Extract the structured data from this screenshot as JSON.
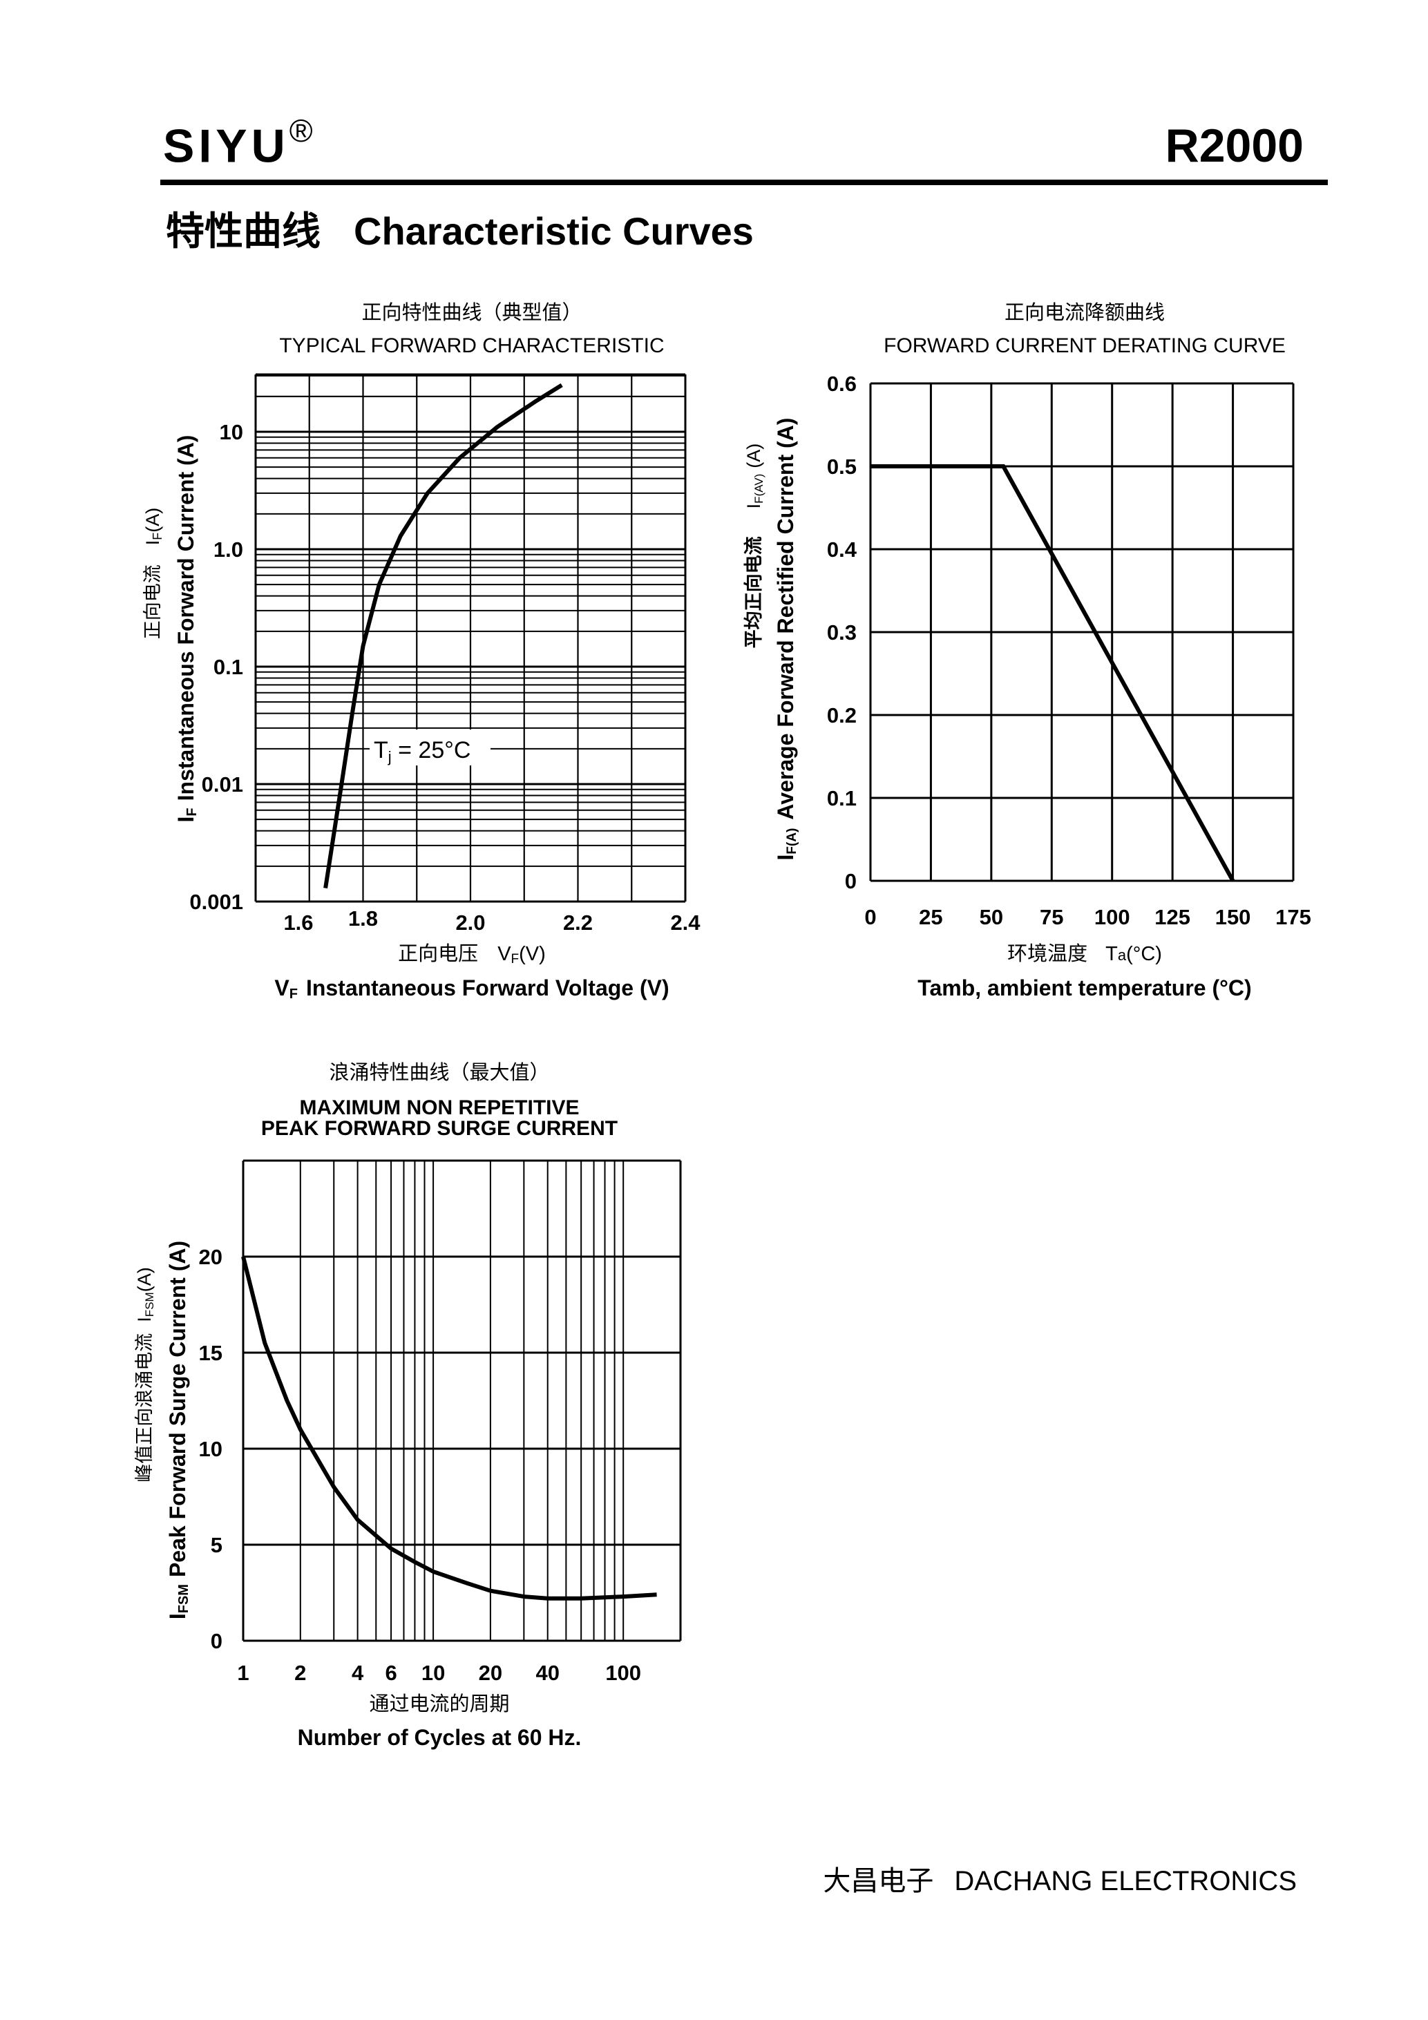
{
  "header": {
    "brand": "SIYU",
    "brand_mark": "®",
    "model": "R2000",
    "section_cn": "特性曲线",
    "section_en": "Characteristic Curves"
  },
  "footer": {
    "company_cn": "大昌电子",
    "company_en": "DACHANG ELECTRONICS"
  },
  "chart_data": [
    {
      "id": "forward",
      "type": "line",
      "title_cn": "正向特性曲线（典型值）",
      "title": "TYPICAL FORWARD CHARACTERISTIC",
      "xlabel_cn": "正向电压",
      "xsym": "VF",
      "xsym_main": "V",
      "xsym_sub": "F",
      "xunit": "(V)",
      "xlabel": "VF Instantaneous Forward Voltage (V)",
      "xlabel_text": "Instantaneous Forward Voltage (V)",
      "ylabel_cn": "正向电流",
      "ysym": "IF",
      "ysym_main": "I",
      "ysym_sub": "F",
      "yunit": "(A)",
      "ylabel": "IF Instantaneous Forward Current (A)",
      "ylabel_text": "Instantaneous Forward Current (A)",
      "xscale": "linear",
      "yscale": "log",
      "xlim": [
        1.6,
        2.4
      ],
      "ylim": [
        0.001,
        30
      ],
      "xticks": [
        {
          "value": 1.6,
          "label": "1.6"
        },
        {
          "value": 1.8,
          "label": "1.8"
        },
        {
          "value": 2.0,
          "label": "2.0"
        },
        {
          "value": 2.2,
          "label": "2.2"
        },
        {
          "value": 2.4,
          "label": "2.4"
        }
      ],
      "yticks": [
        {
          "value": 0.001,
          "label": "0.001"
        },
        {
          "value": 0.01,
          "label": "0.01"
        },
        {
          "value": 0.1,
          "label": "0.1"
        },
        {
          "value": 1.0,
          "label": "1.0"
        },
        {
          "value": 10,
          "label": "10"
        }
      ],
      "annotation": "Tj = 25°C",
      "annotation_main": "T",
      "annotation_sub": "j",
      "annotation_rest": " = 25°C",
      "series": [
        {
          "name": "Tj = 25°C",
          "x": [
            1.73,
            1.76,
            1.78,
            1.8,
            1.83,
            1.87,
            1.92,
            1.98,
            2.05,
            2.12,
            2.17
          ],
          "y": [
            0.0013,
            0.01,
            0.04,
            0.15,
            0.5,
            1.3,
            3.0,
            6.0,
            11.0,
            18.0,
            25.0
          ]
        }
      ]
    },
    {
      "id": "derating",
      "type": "line",
      "title_cn": "正向电流降额曲线",
      "title": "FORWARD CURRENT DERATING CURVE",
      "xlabel_cn": "环境温度",
      "xsym": "Ta",
      "xsym_main": "T",
      "xsym_sub": "a",
      "xunit": "(°C)",
      "xlabel": "Tamb, ambient temperature (°C)",
      "ylabel_cn": "平均正向电流",
      "ysym": "IF(AV)",
      "ysym_main": "I",
      "ysym_sub": "F(AV)",
      "yunit": "(A)",
      "ylabel": "IF(A) Average Forward Rectified Current (A)",
      "ylabel_sym": "I",
      "ylabel_sym_sub": "F(A)",
      "ylabel_text": "Average Forward Rectified Current (A)",
      "xscale": "linear",
      "yscale": "linear",
      "xlim": [
        0,
        175
      ],
      "ylim": [
        0,
        0.6
      ],
      "xticks": [
        {
          "value": 0,
          "label": "0"
        },
        {
          "value": 25,
          "label": "25"
        },
        {
          "value": 50,
          "label": "50"
        },
        {
          "value": 75,
          "label": "75"
        },
        {
          "value": 100,
          "label": "100"
        },
        {
          "value": 125,
          "label": "125"
        },
        {
          "value": 150,
          "label": "150"
        },
        {
          "value": 175,
          "label": "175"
        }
      ],
      "yticks": [
        {
          "value": 0,
          "label": "0"
        },
        {
          "value": 0.1,
          "label": "0.1"
        },
        {
          "value": 0.2,
          "label": "0.2"
        },
        {
          "value": 0.3,
          "label": "0.3"
        },
        {
          "value": 0.4,
          "label": "0.4"
        },
        {
          "value": 0.5,
          "label": "0.5"
        },
        {
          "value": 0.6,
          "label": "0.6"
        }
      ],
      "series": [
        {
          "name": "derating",
          "x": [
            0,
            55,
            150
          ],
          "y": [
            0.5,
            0.5,
            0
          ]
        }
      ]
    },
    {
      "id": "surge",
      "type": "line",
      "title_cn": "浪涌特性曲线（最大值）",
      "title_line1": "MAXIMUM NON REPETITIVE",
      "title_line2": "PEAK FORWARD SURGE CURRENT",
      "xlabel_cn": "通过电流的周期",
      "xlabel": "Number  of  Cycles at 60 Hz.",
      "ylabel_cn": "峰值正向浪涌电流",
      "ysym": "IFSM",
      "ysym_main": "I",
      "ysym_sub": "FSM",
      "yunit": "(A)",
      "ylabel": "IFSM Peak Forward Surge Current (A)",
      "ylabel_text": "Peak Forward Surge Current (A)",
      "xscale": "log",
      "yscale": "linear",
      "xlim": [
        1,
        200
      ],
      "ylim": [
        0,
        25
      ],
      "xticks": [
        {
          "value": 1,
          "label": "1"
        },
        {
          "value": 2,
          "label": "2"
        },
        {
          "value": 4,
          "label": "4"
        },
        {
          "value": 6,
          "label": "6"
        },
        {
          "value": 10,
          "label": "10"
        },
        {
          "value": 20,
          "label": "20"
        },
        {
          "value": 40,
          "label": "40"
        },
        {
          "value": 100,
          "label": "100"
        }
      ],
      "yticks": [
        {
          "value": 0,
          "label": "0"
        },
        {
          "value": 5,
          "label": "5"
        },
        {
          "value": 10,
          "label": "10"
        },
        {
          "value": 15,
          "label": "15"
        },
        {
          "value": 20,
          "label": "20"
        }
      ],
      "series": [
        {
          "name": "IFSM",
          "x": [
            1,
            1.3,
            1.7,
            2,
            3,
            4,
            6,
            8,
            10,
            15,
            20,
            30,
            40,
            60,
            100,
            150
          ],
          "y": [
            20,
            15.5,
            12.5,
            11,
            8,
            6.3,
            4.8,
            4.1,
            3.6,
            3.0,
            2.6,
            2.3,
            2.2,
            2.2,
            2.3,
            2.4
          ]
        }
      ]
    }
  ]
}
